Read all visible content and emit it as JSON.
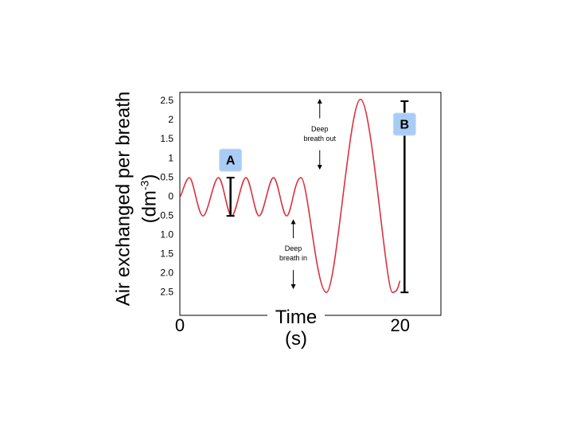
{
  "chart_data": {
    "type": "line",
    "x_label": "Time (s)",
    "y_label": "Air exchanged per breath (dm",
    "y_label_superscript": "-3",
    "y_label_end": ")",
    "x": [
      0,
      0.87,
      2.1,
      3.5,
      4.7,
      6.0,
      7.2,
      8.5,
      9.7,
      11.0,
      13.3,
      16.4,
      19.3,
      20
    ],
    "series": [
      {
        "color": "#d9333f",
        "values": [
          0,
          0.5,
          -0.5,
          0.5,
          -0.5,
          0.5,
          -0.5,
          0.5,
          -0.5,
          0.5,
          -2.5,
          2.55,
          -2.5,
          -2.2
        ]
      }
    ],
    "xlim": [
      0,
      23.7
    ],
    "xticks": [
      0,
      20
    ],
    "ylim": [
      -3.1,
      2.73
    ],
    "yticks": [
      2.5,
      2.0,
      1.5,
      1.0,
      0.5,
      0,
      {
        "value": -0.5,
        "label": "0.5"
      },
      {
        "value": -1.0,
        "label": "1.0"
      },
      {
        "value": -1.5,
        "label": "1.5"
      },
      {
        "value": -2.0,
        "label": "2.0"
      },
      {
        "value": -2.5,
        "label": "2.5"
      }
    ],
    "brackets": [
      {
        "label": "A",
        "x": 4.6,
        "from": 0.5,
        "to": -0.5
      },
      {
        "label": "B",
        "x": 20.4,
        "from": 2.5,
        "to": -2.5
      }
    ],
    "notes": [
      {
        "text": "Deep breath out",
        "x": 12.7,
        "from": 2.5,
        "to": 0.77
      },
      {
        "text": "Deep breath in",
        "x": 10.3,
        "from": -0.65,
        "to": -2.35
      }
    ]
  }
}
